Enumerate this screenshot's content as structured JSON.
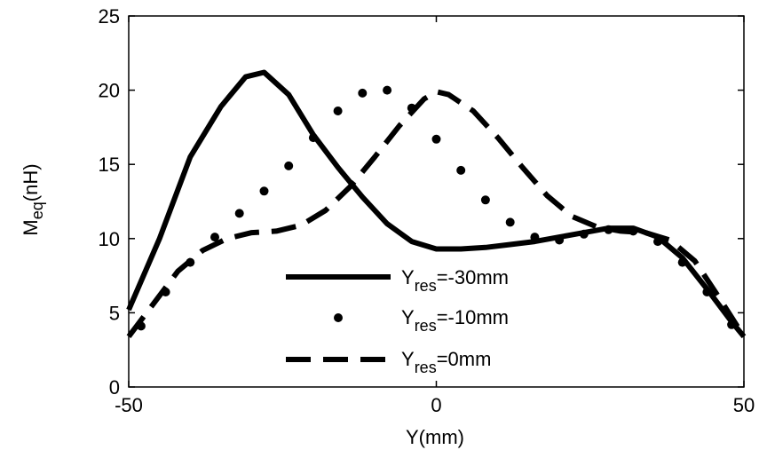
{
  "chart_data": {
    "type": "line",
    "xlabel": "Y(mm)",
    "ylabel": {
      "main": "M",
      "sub": "eq",
      "unit": "(nH)"
    },
    "xlim": [
      -50,
      50
    ],
    "ylim": [
      0,
      25
    ],
    "xticks": [
      -50,
      0,
      50
    ],
    "yticks": [
      0,
      5,
      10,
      15,
      20,
      25
    ],
    "grid": false,
    "legend_position": "bottom-center",
    "series": [
      {
        "name": {
          "main": "Y",
          "sub": "res",
          "rest": "=-30mm"
        },
        "style": "solid",
        "x": [
          -50,
          -45,
          -40,
          -35,
          -31,
          -28,
          -24,
          -20,
          -16,
          -12,
          -8,
          -4,
          0,
          4,
          8,
          12,
          16,
          20,
          24,
          28,
          32,
          36,
          40,
          44,
          48,
          50
        ],
        "y": [
          5.2,
          10.0,
          15.5,
          18.9,
          20.9,
          21.2,
          19.7,
          17.0,
          14.8,
          12.8,
          11.0,
          9.8,
          9.3,
          9.3,
          9.4,
          9.6,
          9.8,
          10.1,
          10.4,
          10.7,
          10.7,
          10.1,
          8.7,
          6.6,
          4.4,
          3.4
        ]
      },
      {
        "name": {
          "main": "Y",
          "sub": "res",
          "rest": "=-10mm"
        },
        "style": "dots",
        "x": [
          -48,
          -44,
          -40,
          -36,
          -32,
          -28,
          -24,
          -20,
          -16,
          -12,
          -8,
          -4,
          0,
          4,
          8,
          12,
          16,
          20,
          24,
          28,
          32,
          36,
          40,
          44,
          48
        ],
        "y": [
          4.1,
          6.4,
          8.4,
          10.1,
          11.7,
          13.2,
          14.9,
          16.8,
          18.6,
          19.8,
          20.0,
          18.8,
          16.7,
          14.6,
          12.6,
          11.1,
          10.1,
          9.9,
          10.3,
          10.6,
          10.5,
          9.8,
          8.4,
          6.4,
          4.2
        ]
      },
      {
        "name": {
          "main": "Y",
          "sub": "res",
          "rest": "=0mm"
        },
        "style": "dashed",
        "x": [
          -50,
          -46,
          -42,
          -38,
          -34,
          -30,
          -26,
          -22,
          -18,
          -14,
          -10,
          -6,
          -2,
          0,
          2,
          6,
          10,
          14,
          18,
          22,
          26,
          30,
          34,
          38,
          42,
          46,
          50
        ],
        "y": [
          3.4,
          5.6,
          7.8,
          9.2,
          10.0,
          10.4,
          10.5,
          10.9,
          11.9,
          13.5,
          15.5,
          17.6,
          19.4,
          19.9,
          19.7,
          18.6,
          16.8,
          14.8,
          12.9,
          11.5,
          10.8,
          10.5,
          10.4,
          9.9,
          8.5,
          6.0,
          3.4
        ]
      }
    ]
  }
}
